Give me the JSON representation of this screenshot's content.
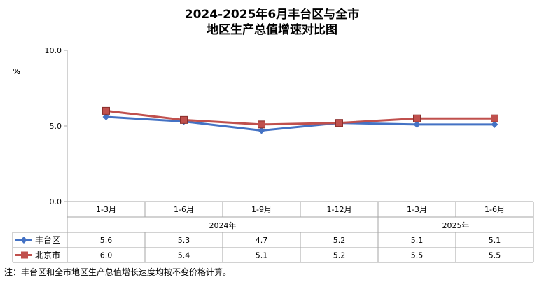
{
  "chart_data": {
    "type": "line",
    "title": "2024-2025年6月丰台区与全市",
    "subtitle": "地区生产总值增速对比图",
    "ylabel": "%",
    "ylim": [
      0,
      10
    ],
    "yticks": [
      "0.0",
      "5.0",
      "10.0"
    ],
    "categories": [
      "1-3月",
      "1-6月",
      "1-9月",
      "1-12月",
      "1-3月",
      "1-6月"
    ],
    "year_groups": [
      {
        "label": "2024年",
        "span": 4
      },
      {
        "label": "2025年",
        "span": 2
      }
    ],
    "series": [
      {
        "name": "丰台区",
        "color": "#4472C4",
        "marker": "diamond",
        "values": [
          5.6,
          5.3,
          4.7,
          5.2,
          5.1,
          5.1
        ],
        "labels": [
          "5.6",
          "5.3",
          "4.7",
          "5.2",
          "5.1",
          "5.1"
        ]
      },
      {
        "name": "北京市",
        "color": "#C0504D",
        "marker": "square",
        "values": [
          6.0,
          5.4,
          5.1,
          5.2,
          5.5,
          5.5
        ],
        "labels": [
          "6.0",
          "5.4",
          "5.1",
          "5.2",
          "5.5",
          "5.5"
        ]
      }
    ],
    "grid": false,
    "legend": "table-left"
  },
  "note": "注：丰台区和全市地区生产总值增长速度均按不变价格计算。"
}
